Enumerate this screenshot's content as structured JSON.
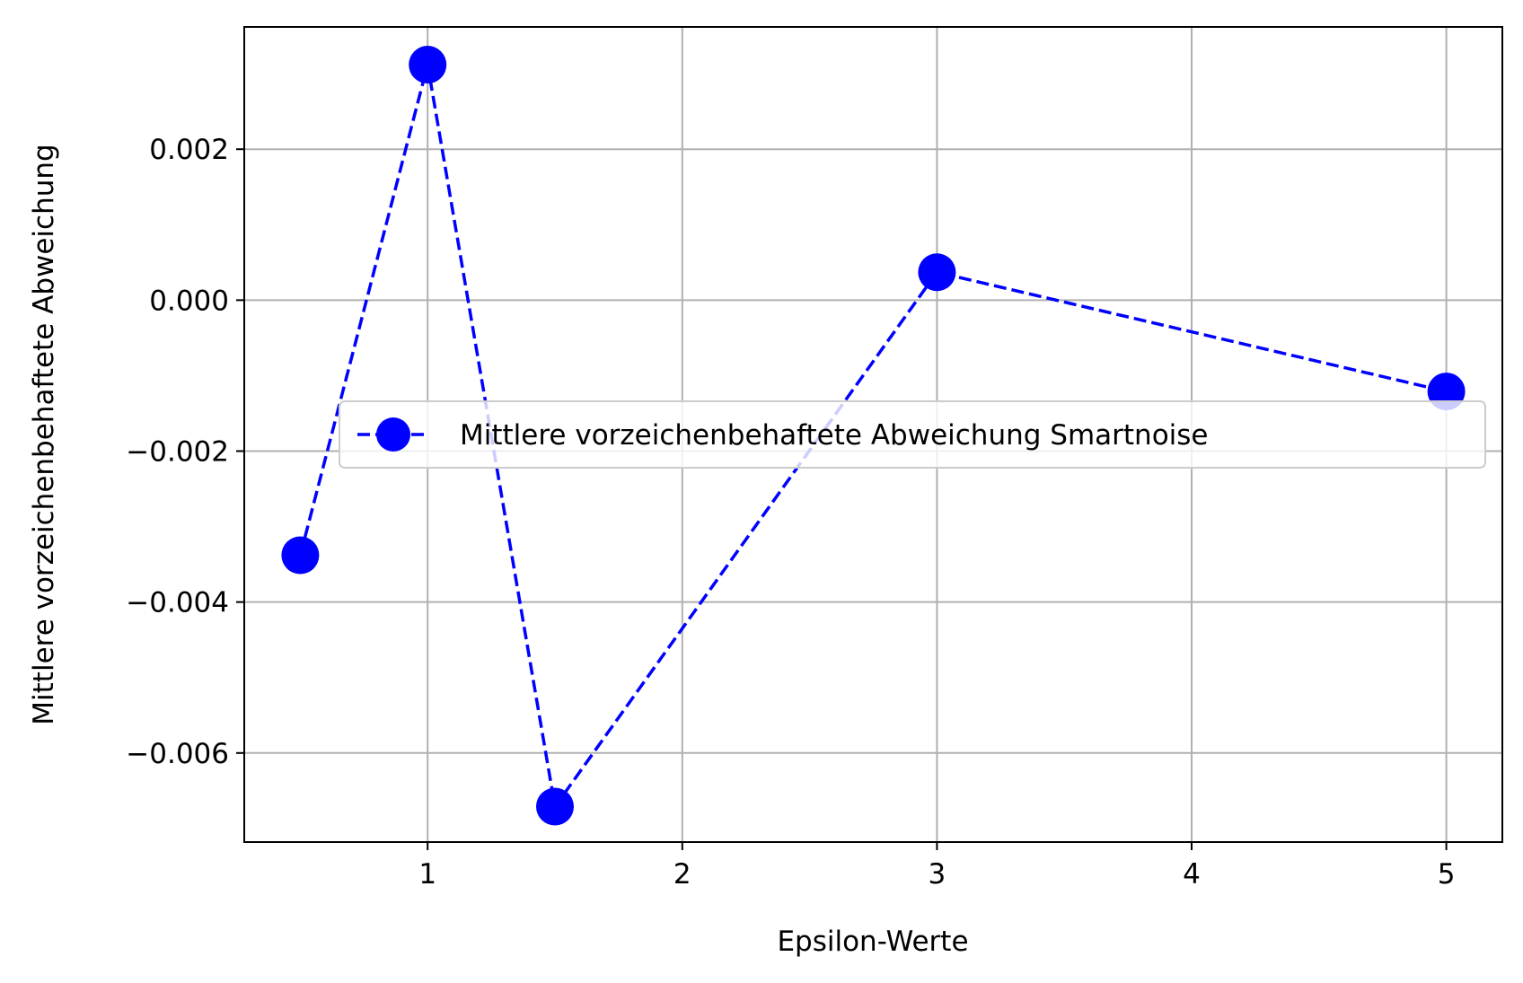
{
  "chart_data": {
    "type": "line",
    "title": "",
    "xlabel": "Epsilon-Werte",
    "ylabel": "Mittlere vorzeichenbehaftete Abweichung",
    "xlim": [
      0.28,
      5.22
    ],
    "ylim": [
      -0.00718,
      0.00362
    ],
    "xticks": [
      1,
      2,
      3,
      4,
      5
    ],
    "xtick_labels": [
      "1",
      "2",
      "3",
      "4",
      "5"
    ],
    "yticks": [
      0.002,
      0.0,
      -0.002,
      -0.004,
      -0.006
    ],
    "ytick_labels": [
      "0.002",
      "0.000",
      "−0.002",
      "−0.004",
      "−0.006"
    ],
    "grid": true,
    "legend_position": "center-right",
    "series": [
      {
        "name": "Mittlere vorzeichenbehaftete Abweichung Smartnoise",
        "color": "#0000ff",
        "line_style": "dashed",
        "marker": "circle",
        "x": [
          0.5,
          1,
          1.5,
          3,
          5
        ],
        "y": [
          -0.00338,
          0.00312,
          -0.00671,
          0.00037,
          -0.00121
        ]
      }
    ]
  }
}
